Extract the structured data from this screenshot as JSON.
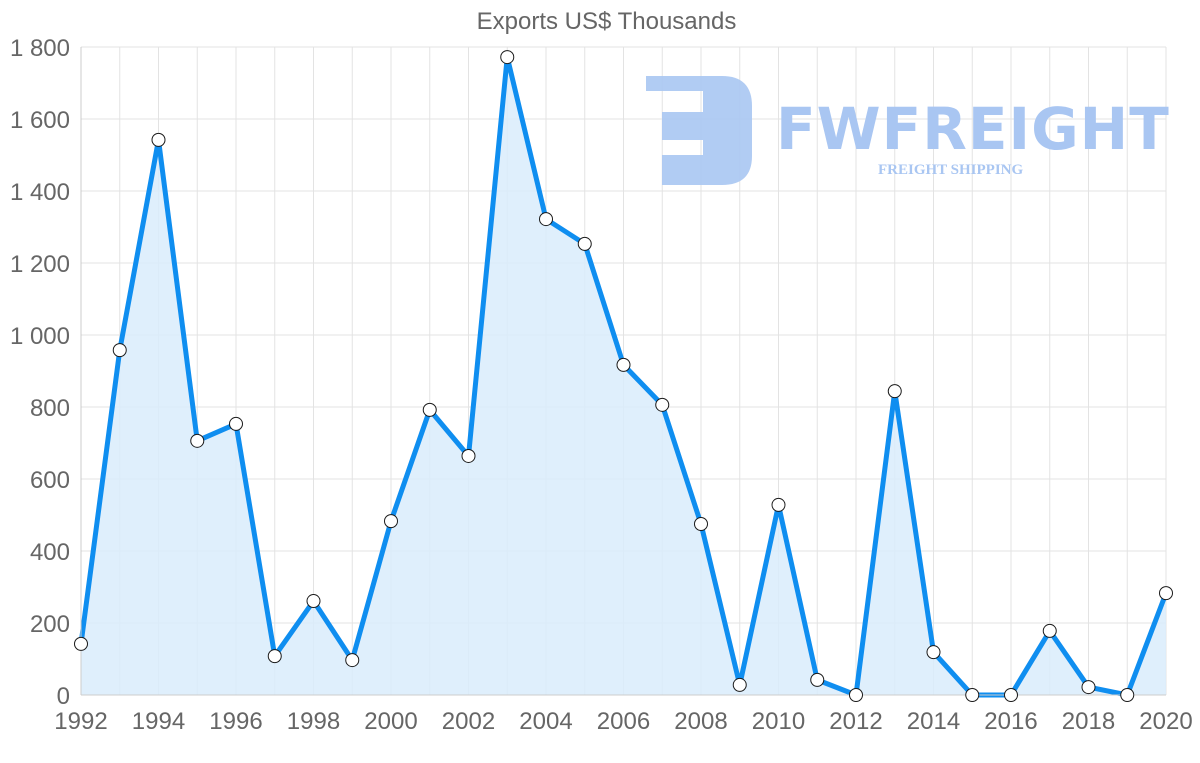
{
  "chart_data": {
    "type": "area",
    "title": "Exports US$ Thousands",
    "xlabel": "",
    "ylabel": "",
    "x": [
      1992,
      1993,
      1994,
      1995,
      1996,
      1997,
      1998,
      1999,
      2000,
      2001,
      2002,
      2003,
      2004,
      2005,
      2006,
      2007,
      2008,
      2009,
      2010,
      2011,
      2012,
      2013,
      2014,
      2015,
      2016,
      2017,
      2018,
      2019,
      2020
    ],
    "series": [
      {
        "name": "Exports US$ Thousands",
        "values": [
          142,
          958,
          1542,
          706,
          753,
          108,
          261,
          97,
          483,
          792,
          664,
          1772,
          1322,
          1253,
          917,
          806,
          475,
          28,
          528,
          42,
          0,
          844,
          119,
          0,
          0,
          178,
          22,
          0,
          283
        ],
        "color": "#0f8ef0",
        "fill": "#d9ecfc"
      }
    ],
    "x_ticks": [
      "1992",
      "1994",
      "1996",
      "1998",
      "2000",
      "2002",
      "2004",
      "2006",
      "2008",
      "2010",
      "2012",
      "2014",
      "2016",
      "2018",
      "2020"
    ],
    "y_ticks": [
      "0",
      "200",
      "400",
      "600",
      "800",
      "1 000",
      "1 200",
      "1 400",
      "1 600",
      "1 800"
    ],
    "ylim": [
      0,
      1800
    ],
    "xlim": [
      1992,
      2020
    ],
    "grid": true,
    "legend": "none"
  },
  "watermark": {
    "brand": "FWFREIGHT",
    "tagline": "FREIGHT SHIPPING"
  }
}
